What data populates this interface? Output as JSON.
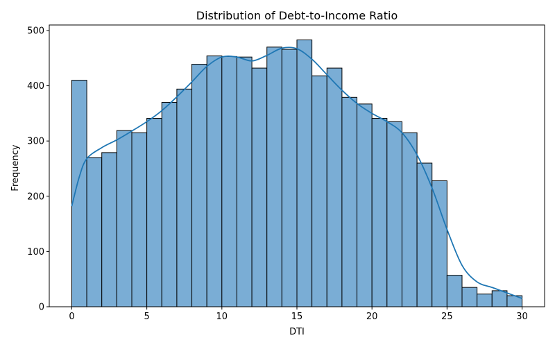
{
  "chart_data": {
    "type": "bar",
    "subtype": "histogram",
    "title": "Distribution of Debt-to-Income Ratio",
    "xlabel": "DTI",
    "ylabel": "Frequency",
    "xlim": [
      -1.5,
      31.5
    ],
    "ylim": [
      0,
      510
    ],
    "xticks": [
      0,
      5,
      10,
      15,
      20,
      25,
      30
    ],
    "yticks": [
      0,
      100,
      200,
      300,
      400,
      500
    ],
    "bin_edges": [
      0,
      1,
      2,
      3,
      4,
      5,
      6,
      7,
      8,
      9,
      10,
      11,
      12,
      13,
      14,
      15,
      16,
      17,
      18,
      19,
      20,
      21,
      22,
      23,
      24,
      25,
      26,
      27,
      28,
      29,
      30
    ],
    "counts": [
      410,
      270,
      279,
      319,
      315,
      341,
      370,
      394,
      439,
      454,
      453,
      452,
      432,
      470,
      466,
      483,
      418,
      432,
      379,
      367,
      341,
      335,
      315,
      260,
      228,
      57,
      35,
      23,
      29,
      20
    ],
    "kde": {
      "x": [
        0,
        0.5,
        1,
        2,
        3,
        4,
        5,
        6,
        7,
        8,
        9,
        10,
        11,
        12,
        13,
        14,
        15,
        16,
        17,
        18,
        19,
        20,
        21,
        22,
        23,
        24,
        25,
        26,
        27,
        28,
        29,
        30
      ],
      "y": [
        182,
        235,
        268,
        288,
        302,
        318,
        335,
        355,
        380,
        407,
        435,
        452,
        452,
        445,
        455,
        468,
        467,
        448,
        420,
        392,
        368,
        350,
        335,
        315,
        275,
        215,
        140,
        75,
        45,
        35,
        25,
        15
      ]
    },
    "bar_color": "#7aadd5",
    "bar_edge_color": "#000000",
    "kde_color": "#1f77b4",
    "grid": false,
    "legend": "none"
  }
}
